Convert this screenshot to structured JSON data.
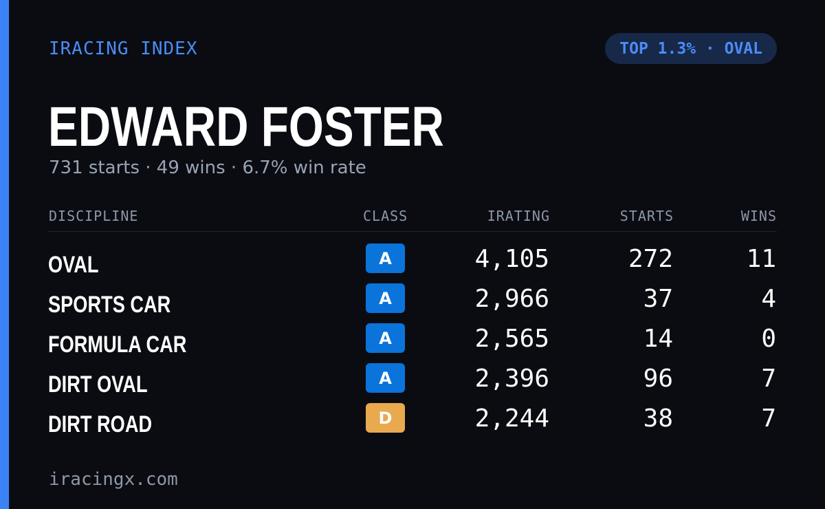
{
  "header": {
    "brand": "IRACING INDEX",
    "rank_badge": "TOP 1.3% · OVAL",
    "accent_color": "#3b82f6"
  },
  "driver": {
    "name": "EDWARD FOSTER",
    "summary": "731 starts · 49 wins · 6.7% win rate"
  },
  "table": {
    "columns": [
      "DISCIPLINE",
      "CLASS",
      "IRATING",
      "STARTS",
      "WINS"
    ],
    "rows": [
      {
        "discipline": "OVAL",
        "class": "A",
        "class_color": "#0a74da",
        "irating": "4,105",
        "starts": "272",
        "wins": "11"
      },
      {
        "discipline": "SPORTS CAR",
        "class": "A",
        "class_color": "#0a74da",
        "irating": "2,966",
        "starts": "37",
        "wins": "4"
      },
      {
        "discipline": "FORMULA CAR",
        "class": "A",
        "class_color": "#0a74da",
        "irating": "2,565",
        "starts": "14",
        "wins": "0"
      },
      {
        "discipline": "DIRT OVAL",
        "class": "A",
        "class_color": "#0a74da",
        "irating": "2,396",
        "starts": "96",
        "wins": "7"
      },
      {
        "discipline": "DIRT ROAD",
        "class": "D",
        "class_color": "#e8a94f",
        "irating": "2,244",
        "starts": "38",
        "wins": "7"
      }
    ]
  },
  "footer": {
    "site": "iracingx.com"
  }
}
